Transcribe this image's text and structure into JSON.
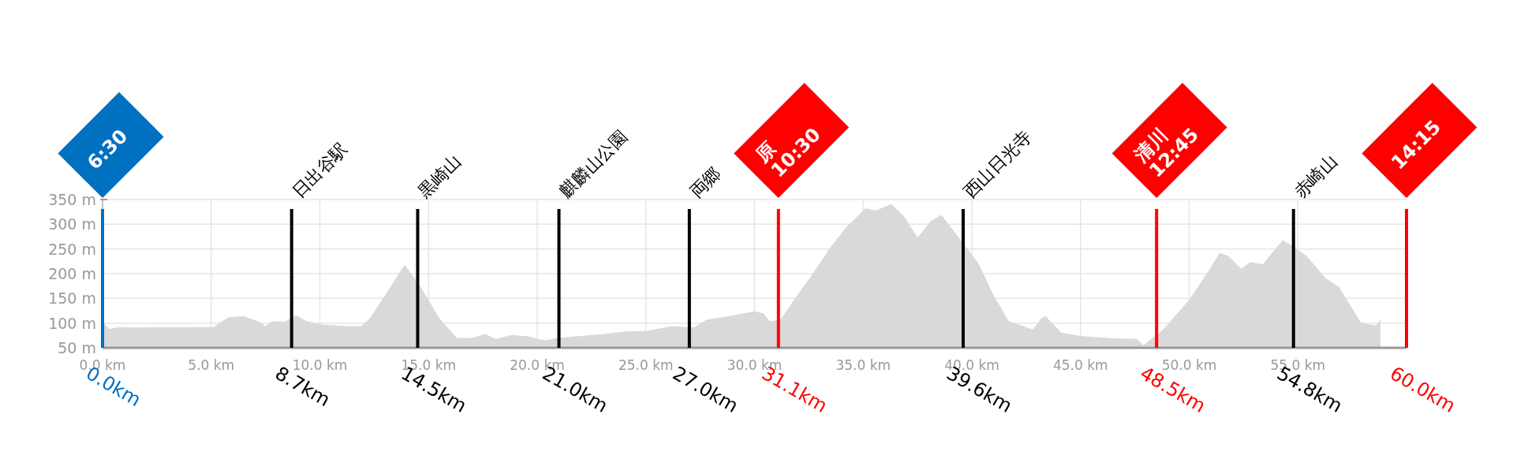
{
  "chart_data": {
    "type": "area",
    "x": [
      0,
      0.3,
      0.75,
      1.2,
      5.1,
      5.8,
      6.5,
      7.2,
      7.5,
      7.8,
      8.4,
      8.9,
      9.4,
      10.1,
      11.3,
      11.9,
      12.3,
      13.1,
      13.9,
      14.6,
      15.5,
      16.3,
      17,
      17.6,
      18.1,
      18.8,
      19.6,
      20,
      20.4,
      20.9,
      22.9,
      24.1,
      25,
      26.2,
      27.2,
      27.8,
      28.8,
      30,
      30.4,
      30.7,
      31.2,
      31.8,
      32.6,
      33.5,
      34.2,
      35.1,
      35.6,
      36.3,
      36.9,
      37.5,
      37.8,
      38.1,
      38.6,
      39.4,
      40.3,
      41,
      41.7,
      42.8,
      43.2,
      43.4,
      44.1,
      45,
      46.5,
      47.6,
      47.9,
      48.8,
      50,
      50.9,
      51.4,
      51.8,
      52.4,
      52.8,
      53.4,
      53.7,
      54.3,
      54.8,
      55.4,
      56.3,
      56.9,
      57.9,
      58.6,
      58.8
    ],
    "series": [
      {
        "color": "#d9d9d9",
        "values": [
          104,
          88,
          92,
          91,
          92,
          112,
          114,
          103,
          94,
          104,
          103,
          116,
          104,
          97,
          94,
          94,
          110,
          163,
          218,
          176,
          110,
          70,
          70,
          78,
          68,
          76,
          73,
          68,
          65,
          70,
          77,
          83,
          84,
          94,
          91,
          107,
          114,
          124,
          120,
          104,
          107,
          146,
          195,
          254,
          293,
          332,
          328,
          341,
          315,
          273,
          289,
          306,
          319,
          273,
          221,
          156,
          104,
          87,
          110,
          114,
          81,
          74,
          69,
          68,
          55,
          87,
          147,
          206,
          242,
          236,
          210,
          223,
          219,
          236,
          268,
          255,
          236,
          190,
          173,
          101,
          95,
          107
        ]
      }
    ],
    "xlim": [
      0,
      60
    ],
    "ylim": [
      50,
      350
    ],
    "xticks": [
      {
        "value": 0,
        "label": "0.0 km"
      },
      {
        "value": 5,
        "label": "5.0 km"
      },
      {
        "value": 10,
        "label": "10.0 km"
      },
      {
        "value": 15,
        "label": "15.0 km"
      },
      {
        "value": 20,
        "label": "20.0 km"
      },
      {
        "value": 25,
        "label": "25.0 km"
      },
      {
        "value": 30,
        "label": "30.0 km"
      },
      {
        "value": 35,
        "label": "35.0 km"
      },
      {
        "value": 40,
        "label": "40.0 km"
      },
      {
        "value": 45,
        "label": "45.0 km"
      },
      {
        "value": 50,
        "label": "50.0 km"
      },
      {
        "value": 55,
        "label": "55.0 km"
      }
    ],
    "yticks": [
      {
        "value": 50,
        "label": "50 m"
      },
      {
        "value": 100,
        "label": "100 m"
      },
      {
        "value": 150,
        "label": "150 m"
      },
      {
        "value": 200,
        "label": "200 m"
      },
      {
        "value": 250,
        "label": "250 m"
      },
      {
        "value": 300,
        "label": "300 m"
      },
      {
        "value": 350,
        "label": "350 m"
      }
    ],
    "grid": true,
    "ref_lines": [
      {
        "axis": "x",
        "value": 0,
        "label": "0.0km",
        "color": "#0070c0"
      },
      {
        "axis": "x",
        "value": 8.7,
        "label": "8.7km",
        "color": "#000000"
      },
      {
        "axis": "x",
        "value": 14.5,
        "label": "14.5km",
        "color": "#000000"
      },
      {
        "axis": "x",
        "value": 21.0,
        "label": "21.0km",
        "color": "#000000"
      },
      {
        "axis": "x",
        "value": 27.0,
        "label": "27.0km",
        "color": "#000000"
      },
      {
        "axis": "x",
        "value": 31.1,
        "label": "31.1km",
        "color": "#ff0000"
      },
      {
        "axis": "x",
        "value": 39.6,
        "label": "39.6km",
        "color": "#000000"
      },
      {
        "axis": "x",
        "value": 48.5,
        "label": "48.5km",
        "color": "#ff0000"
      },
      {
        "axis": "x",
        "value": 54.8,
        "label": "54.8km",
        "color": "#000000"
      },
      {
        "axis": "x",
        "value": 60.0,
        "label": "60.0km",
        "color": "#ff0000"
      }
    ],
    "annotations": [
      "6:30",
      "日出谷駅",
      "黒崎山",
      "麒麟山公園",
      "両郷",
      "原\n10:30",
      "西山日光寺",
      "清川\n12:45",
      "赤崎山",
      "14:15"
    ]
  }
}
